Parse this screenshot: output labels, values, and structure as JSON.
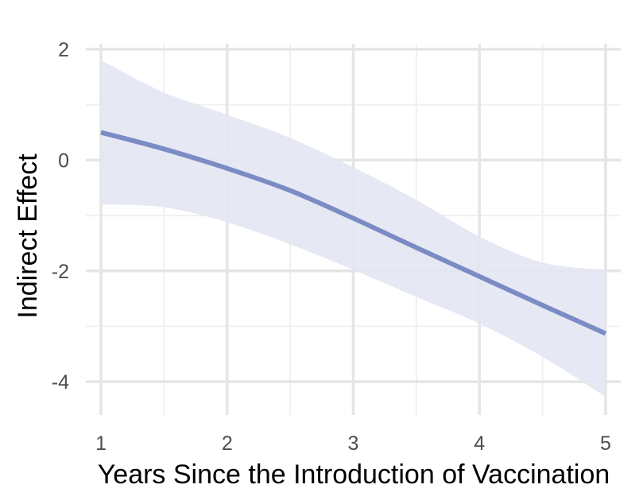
{
  "chart_data": {
    "type": "line",
    "title": "",
    "xlabel": "Years Since the Introduction of Vaccination",
    "ylabel": "Indirect Effect",
    "xlim": [
      0.88,
      5.12
    ],
    "ylim": [
      -4.6,
      2.1
    ],
    "x_ticks": [
      1,
      2,
      3,
      4,
      5
    ],
    "y_ticks": [
      -4,
      -2,
      0,
      2
    ],
    "grid": true,
    "series": [
      {
        "x": [
          1,
          1.5,
          2,
          2.5,
          3,
          3.5,
          4,
          4.5,
          5
        ],
        "y": [
          0.5,
          0.2,
          -0.15,
          -0.55,
          -1.05,
          -1.58,
          -2.1,
          -2.62,
          -3.13
        ],
        "lower": [
          -0.8,
          -0.85,
          -1.12,
          -1.52,
          -1.98,
          -2.47,
          -2.95,
          -3.55,
          -4.27
        ],
        "upper": [
          1.8,
          1.22,
          0.82,
          0.4,
          -0.13,
          -0.72,
          -1.38,
          -1.85,
          -1.98
        ]
      }
    ],
    "colors": {
      "line": "#7b8cc4",
      "ribbon": "#e3e6f3",
      "grid_major": "#e5e5e5",
      "grid_minor": "#f0f0f0"
    }
  }
}
